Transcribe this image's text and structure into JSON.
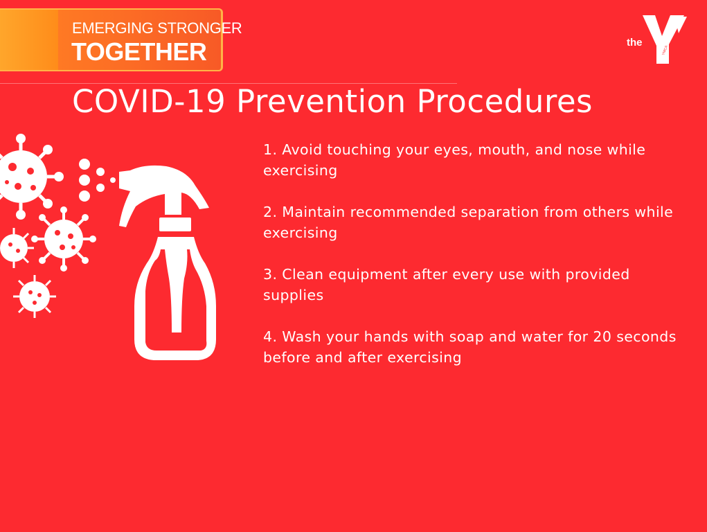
{
  "banner": {
    "line1": "EMERGING STRONGER",
    "line2": "TOGETHER"
  },
  "logo": {
    "the": "the",
    "ymca": "YMCA",
    "icon": "ymca-y-logo"
  },
  "title": "COVID-19 Prevention Procedures",
  "procedures": [
    "1. Avoid touching your eyes, mouth, and nose while exercising",
    "2. Maintain recommended  separation from others while exercising",
    "3. Clean equipment after every use with provided supplies",
    "4. Wash your hands with soap and water for 20 seconds before and after exercising"
  ],
  "illustration": {
    "icons": [
      "virus-icon",
      "spray-bottle-icon",
      "spray-mist-icon"
    ]
  },
  "colors": {
    "background": "#fd2a30",
    "banner": "#ff7a24",
    "text": "#ffffff"
  }
}
